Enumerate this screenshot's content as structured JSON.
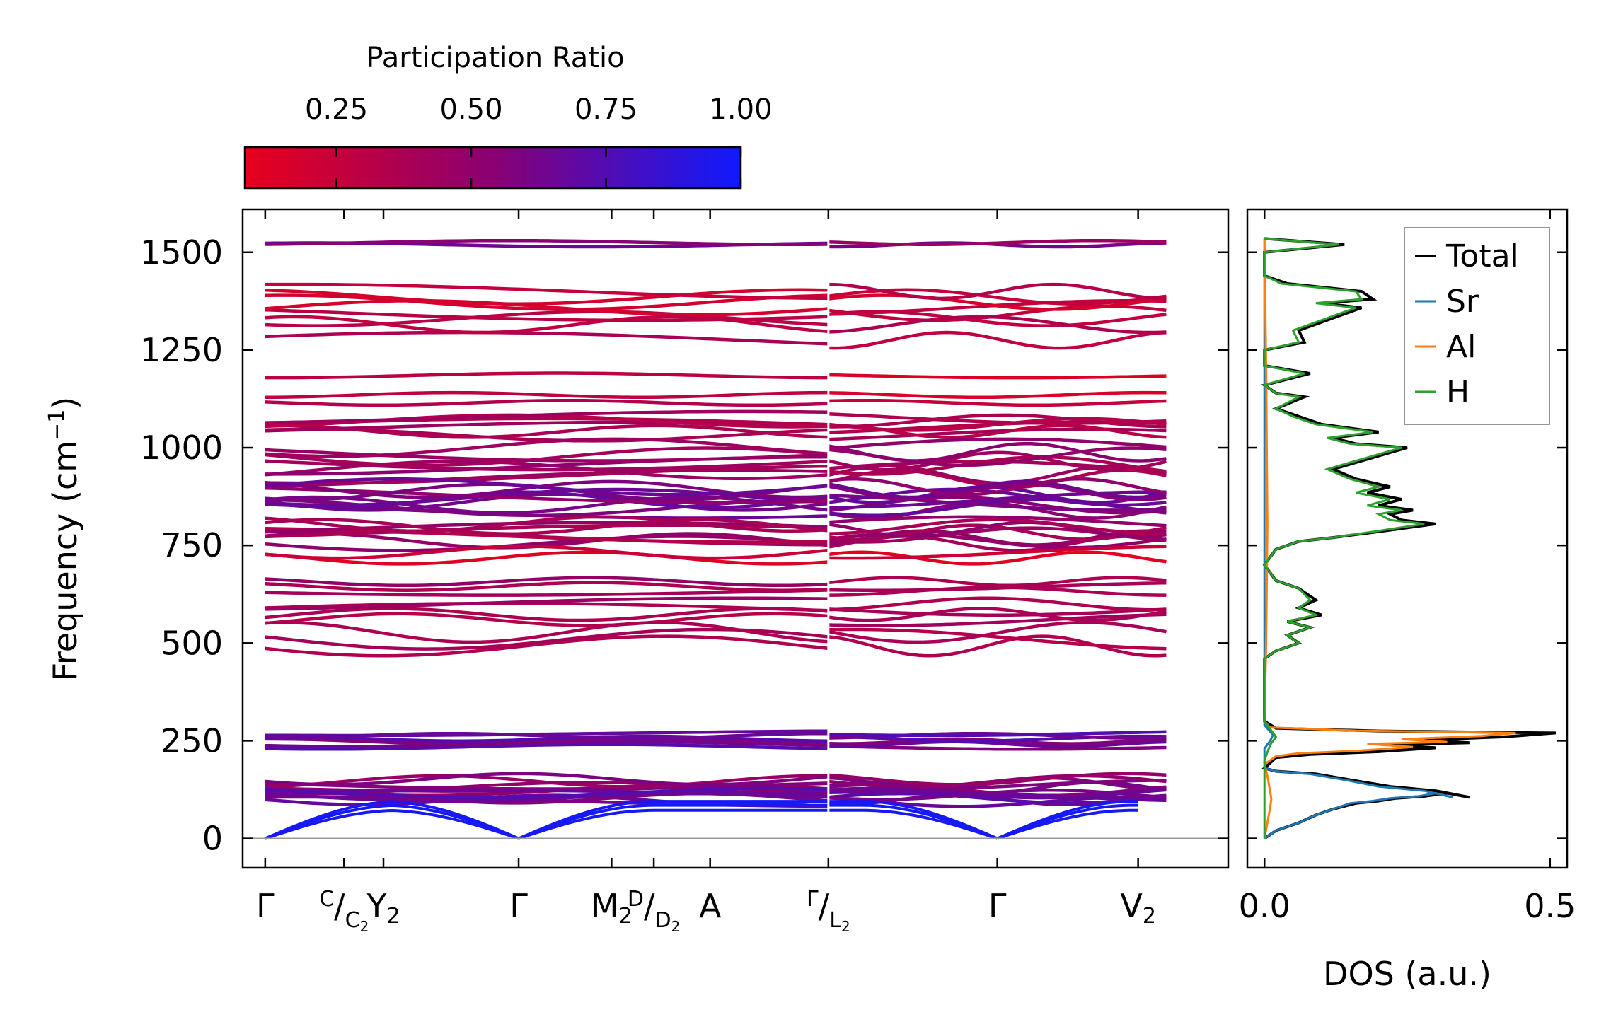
{
  "chart_data": [
    {
      "type": "line",
      "title": "",
      "xlabel": "",
      "ylabel": "Frequency (cm⁻¹)",
      "ylabel_parts": {
        "main": "Frequency (cm",
        "sup": "−1",
        "close": ")"
      },
      "ylim": [
        -75,
        1610
      ],
      "yticks": [
        0,
        250,
        500,
        750,
        1000,
        1250,
        1500
      ],
      "path_segments": [
        {
          "xrange": [
            0,
            1.0
          ],
          "labels": [
            "Γ",
            "C/C₂",
            "Y₂",
            "Γ",
            "M₂",
            "D/D₂",
            "A",
            "Γ/L₂"
          ]
        },
        {
          "xrange": [
            1.0,
            1.6
          ],
          "labels": [
            "Γ/L₂",
            "Γ",
            "V₂"
          ]
        }
      ],
      "kpoints": [
        {
          "x": 0.0,
          "label": "Γ"
        },
        {
          "x": 0.14,
          "label": "C/C₂",
          "top": "C",
          "bottom": "C",
          "sub": "2"
        },
        {
          "x": 0.21,
          "label": "Y₂",
          "main": "Y",
          "sub": "2"
        },
        {
          "x": 0.45,
          "label": "Γ"
        },
        {
          "x": 0.615,
          "label": "M₂",
          "main": "M",
          "sub": "2"
        },
        {
          "x": 0.69,
          "label": "D/D₂",
          "top": "D",
          "bottom": "D",
          "sub": "2"
        },
        {
          "x": 0.79,
          "label": "A"
        },
        {
          "x": 1.0,
          "label": "Γ/L₂",
          "top": "Γ",
          "bottom": "L",
          "sub": "2"
        },
        {
          "x": 1.3,
          "label": "Γ"
        },
        {
          "x": 1.55,
          "label": "V₂",
          "main": "V",
          "sub": "2"
        }
      ],
      "minor_ticks": [
        0.14,
        0.21,
        0.45,
        0.615,
        0.69,
        0.79,
        1.0,
        1.3
      ],
      "band_groups": [
        {
          "base": 1522,
          "count": 2,
          "spread": 6,
          "pr": 0.55,
          "amp": 5
        },
        {
          "base": 1365,
          "count": 6,
          "spread": 70,
          "pr": 0.25,
          "amp": 18
        },
        {
          "base": 1295,
          "count": 2,
          "spread": 40,
          "pr": 0.3,
          "amp": 20
        },
        {
          "base": 1185,
          "count": 1,
          "spread": 0,
          "pr": 0.22,
          "amp": 6
        },
        {
          "base": 1125,
          "count": 2,
          "spread": 20,
          "pr": 0.25,
          "amp": 6
        },
        {
          "base": 1055,
          "count": 6,
          "spread": 45,
          "pr": 0.35,
          "amp": 15
        },
        {
          "base": 960,
          "count": 8,
          "spread": 80,
          "pr": 0.45,
          "amp": 22
        },
        {
          "base": 870,
          "count": 10,
          "spread": 60,
          "pr": 0.6,
          "amp": 20
        },
        {
          "base": 780,
          "count": 8,
          "spread": 50,
          "pr": 0.42,
          "amp": 18
        },
        {
          "base": 725,
          "count": 2,
          "spread": 15,
          "pr": 0.15,
          "amp": 15
        },
        {
          "base": 645,
          "count": 3,
          "spread": 25,
          "pr": 0.45,
          "amp": 10
        },
        {
          "base": 580,
          "count": 4,
          "spread": 40,
          "pr": 0.4,
          "amp": 15
        },
        {
          "base": 510,
          "count": 3,
          "spread": 35,
          "pr": 0.35,
          "amp": 25
        },
        {
          "base": 252,
          "count": 6,
          "spread": 35,
          "pr": 0.65,
          "amp": 6
        },
        {
          "base": 138,
          "count": 6,
          "spread": 28,
          "pr": 0.55,
          "amp": 14
        },
        {
          "base": 105,
          "count": 6,
          "spread": 22,
          "pr": 0.65,
          "amp": 12
        }
      ],
      "acoustic_gamma_x": [
        0.0,
        0.45,
        1.3
      ],
      "acoustic_top": [
        72,
        85,
        95
      ],
      "zero_line": 0,
      "colorbar": {
        "title": "Participation Ratio",
        "ticks": [
          0.25,
          0.5,
          0.75,
          1.0
        ],
        "tick_labels": [
          "0.25",
          "0.50",
          "0.75",
          "1.00"
        ],
        "range": [
          0.08,
          1.0
        ],
        "color_low": "#e8001c",
        "color_mid": "#8a0072",
        "color_high": "#0f1aff"
      }
    },
    {
      "type": "line",
      "title": "",
      "xlabel": "DOS (a.u.)",
      "ylabel": "",
      "xlim": [
        -0.03,
        0.53
      ],
      "ylim": [
        -75,
        1610
      ],
      "xticks": [
        0.0,
        0.5
      ],
      "xtick_labels": [
        "0.0",
        "0.5"
      ],
      "legend": {
        "position": "upper-right",
        "entries": [
          "Total",
          "Sr",
          "Al",
          "H"
        ]
      },
      "series": [
        {
          "name": "Total",
          "color": "#000000",
          "points": [
            [
              0.0,
              0
            ],
            [
              0.01,
              10
            ],
            [
              0.02,
              20
            ],
            [
              0.04,
              30
            ],
            [
              0.06,
              40
            ],
            [
              0.09,
              60
            ],
            [
              0.12,
              75
            ],
            [
              0.16,
              90
            ],
            [
              0.2,
              96
            ],
            [
              0.23,
              103
            ],
            [
              0.28,
              108
            ],
            [
              0.32,
              116
            ],
            [
              0.36,
              105
            ],
            [
              0.3,
              122
            ],
            [
              0.22,
              133
            ],
            [
              0.15,
              150
            ],
            [
              0.09,
              165
            ],
            [
              0.02,
              172
            ],
            [
              0.0,
              180
            ],
            [
              0.02,
              207
            ],
            [
              0.08,
              215
            ],
            [
              0.2,
              222
            ],
            [
              0.3,
              232
            ],
            [
              0.22,
              240
            ],
            [
              0.36,
              245
            ],
            [
              0.28,
              252
            ],
            [
              0.42,
              260
            ],
            [
              0.51,
              270
            ],
            [
              0.2,
              275
            ],
            [
              0.02,
              282
            ],
            [
              0.0,
              300
            ],
            [
              0.0,
              460
            ],
            [
              0.02,
              480
            ],
            [
              0.06,
              500
            ],
            [
              0.04,
              520
            ],
            [
              0.08,
              540
            ],
            [
              0.04,
              555
            ],
            [
              0.1,
              572
            ],
            [
              0.06,
              590
            ],
            [
              0.09,
              610
            ],
            [
              0.06,
              640
            ],
            [
              0.02,
              660
            ],
            [
              0.0,
              700
            ],
            [
              0.02,
              740
            ],
            [
              0.06,
              760
            ],
            [
              0.12,
              770
            ],
            [
              0.2,
              785
            ],
            [
              0.3,
              805
            ],
            [
              0.24,
              815
            ],
            [
              0.22,
              830
            ],
            [
              0.26,
              840
            ],
            [
              0.2,
              852
            ],
            [
              0.24,
              868
            ],
            [
              0.18,
              885
            ],
            [
              0.22,
              900
            ],
            [
              0.16,
              920
            ],
            [
              0.12,
              945
            ],
            [
              0.25,
              1000
            ],
            [
              0.16,
              1010
            ],
            [
              0.12,
              1025
            ],
            [
              0.2,
              1040
            ],
            [
              0.1,
              1060
            ],
            [
              0.06,
              1080
            ],
            [
              0.02,
              1100
            ],
            [
              0.07,
              1130
            ],
            [
              0.02,
              1140
            ],
            [
              0.0,
              1160
            ],
            [
              0.08,
              1190
            ],
            [
              0.0,
              1210
            ],
            [
              0.0,
              1250
            ],
            [
              0.07,
              1270
            ],
            [
              0.06,
              1300
            ],
            [
              0.17,
              1358
            ],
            [
              0.1,
              1370
            ],
            [
              0.19,
              1380
            ],
            [
              0.17,
              1400
            ],
            [
              0.04,
              1420
            ],
            [
              0.0,
              1440
            ],
            [
              0.0,
              1500
            ],
            [
              0.14,
              1520
            ],
            [
              0.0,
              1535
            ]
          ]
        },
        {
          "name": "Sr",
          "color": "#1f77b4",
          "points": [
            [
              0.0,
              0
            ],
            [
              0.01,
              10
            ],
            [
              0.02,
              20
            ],
            [
              0.04,
              30
            ],
            [
              0.06,
              40
            ],
            [
              0.09,
              60
            ],
            [
              0.12,
              75
            ],
            [
              0.15,
              90
            ],
            [
              0.19,
              96
            ],
            [
              0.22,
              103
            ],
            [
              0.27,
              108
            ],
            [
              0.3,
              116
            ],
            [
              0.33,
              105
            ],
            [
              0.28,
              122
            ],
            [
              0.2,
              133
            ],
            [
              0.14,
              150
            ],
            [
              0.08,
              165
            ],
            [
              0.02,
              172
            ],
            [
              0.0,
              180
            ],
            [
              0.0,
              230
            ],
            [
              0.01,
              250
            ],
            [
              0.015,
              265
            ],
            [
              0.0,
              290
            ],
            [
              0.0,
              1535
            ]
          ]
        },
        {
          "name": "Al",
          "color": "#ff7f0e",
          "points": [
            [
              0.0,
              0
            ],
            [
              0.005,
              40
            ],
            [
              0.01,
              80
            ],
            [
              0.012,
              100
            ],
            [
              0.01,
              120
            ],
            [
              0.005,
              160
            ],
            [
              0.0,
              190
            ],
            [
              0.02,
              210
            ],
            [
              0.06,
              218
            ],
            [
              0.16,
              224
            ],
            [
              0.26,
              234
            ],
            [
              0.18,
              242
            ],
            [
              0.32,
              247
            ],
            [
              0.24,
              254
            ],
            [
              0.38,
              262
            ],
            [
              0.44,
              270
            ],
            [
              0.16,
              276
            ],
            [
              0.01,
              284
            ],
            [
              0.0,
              300
            ],
            [
              0.003,
              500
            ],
            [
              0.005,
              800
            ],
            [
              0.003,
              1200
            ],
            [
              0.0,
              1535
            ]
          ]
        },
        {
          "name": "H",
          "color": "#2ca02c",
          "points": [
            [
              0.0,
              0
            ],
            [
              0.0,
              200
            ],
            [
              0.01,
              240
            ],
            [
              0.02,
              260
            ],
            [
              0.0,
              300
            ],
            [
              0.0,
              460
            ],
            [
              0.02,
              480
            ],
            [
              0.06,
              500
            ],
            [
              0.04,
              520
            ],
            [
              0.08,
              540
            ],
            [
              0.04,
              555
            ],
            [
              0.09,
              572
            ],
            [
              0.06,
              590
            ],
            [
              0.08,
              610
            ],
            [
              0.06,
              640
            ],
            [
              0.02,
              660
            ],
            [
              0.0,
              700
            ],
            [
              0.02,
              740
            ],
            [
              0.06,
              760
            ],
            [
              0.12,
              770
            ],
            [
              0.19,
              785
            ],
            [
              0.28,
              805
            ],
            [
              0.22,
              815
            ],
            [
              0.2,
              830
            ],
            [
              0.24,
              840
            ],
            [
              0.18,
              852
            ],
            [
              0.22,
              868
            ],
            [
              0.16,
              885
            ],
            [
              0.2,
              900
            ],
            [
              0.15,
              920
            ],
            [
              0.11,
              945
            ],
            [
              0.24,
              1000
            ],
            [
              0.15,
              1010
            ],
            [
              0.11,
              1025
            ],
            [
              0.19,
              1040
            ],
            [
              0.09,
              1060
            ],
            [
              0.05,
              1080
            ],
            [
              0.02,
              1100
            ],
            [
              0.06,
              1130
            ],
            [
              0.02,
              1140
            ],
            [
              0.0,
              1160
            ],
            [
              0.07,
              1190
            ],
            [
              0.0,
              1210
            ],
            [
              0.0,
              1250
            ],
            [
              0.06,
              1270
            ],
            [
              0.05,
              1300
            ],
            [
              0.16,
              1358
            ],
            [
              0.09,
              1370
            ],
            [
              0.17,
              1380
            ],
            [
              0.16,
              1400
            ],
            [
              0.03,
              1420
            ],
            [
              0.0,
              1440
            ],
            [
              0.0,
              1500
            ],
            [
              0.13,
              1520
            ],
            [
              0.0,
              1535
            ]
          ]
        }
      ]
    }
  ]
}
